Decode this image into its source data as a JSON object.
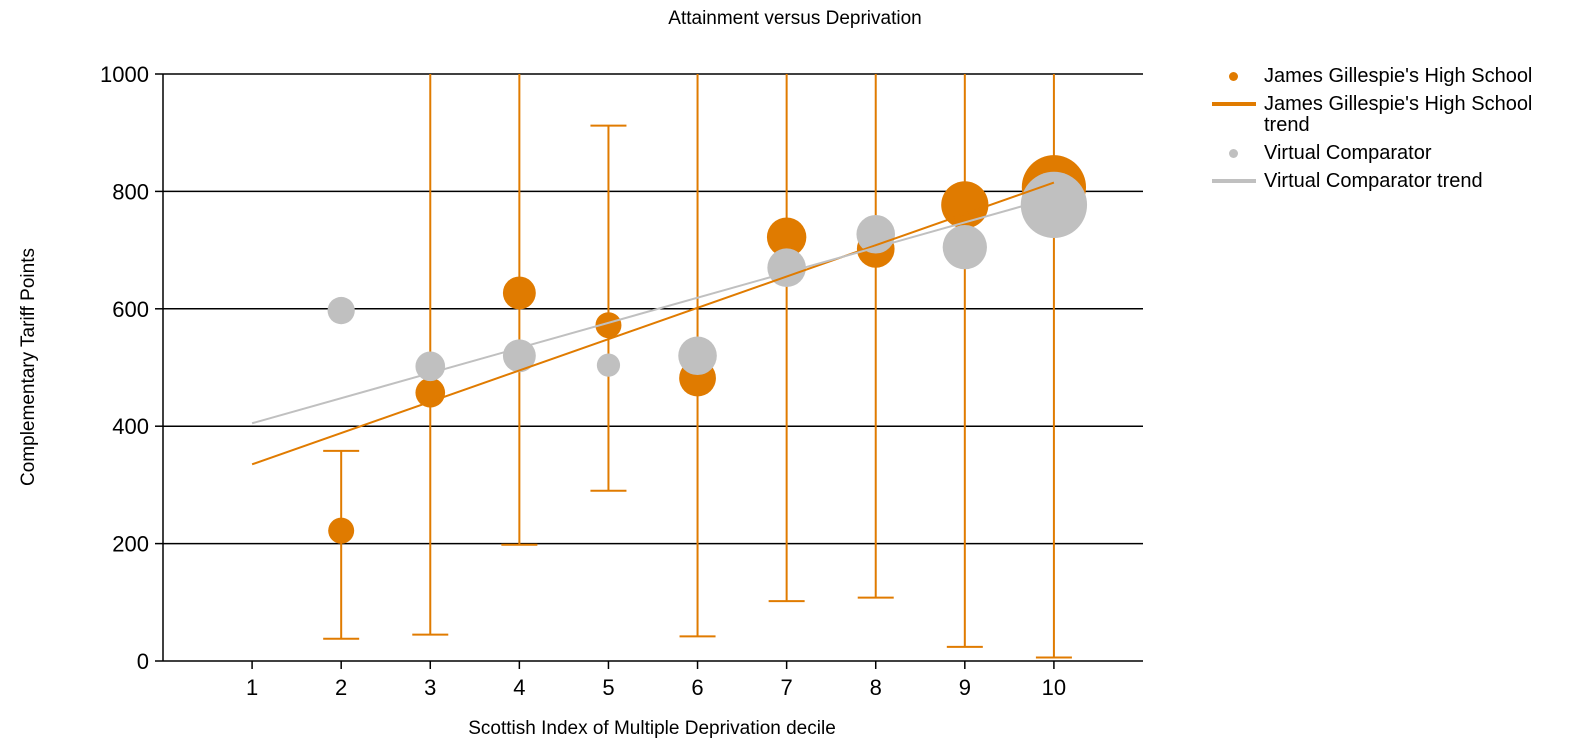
{
  "chart_data": {
    "type": "scatter",
    "title": "Attainment versus Deprivation",
    "xlabel": "Scottish Index of Multiple Deprivation decile",
    "ylabel": "Complementary Tariff Points",
    "xlim": [
      0,
      11
    ],
    "ylim": [
      0,
      1000
    ],
    "xticks": [
      1,
      2,
      3,
      4,
      5,
      6,
      7,
      8,
      9,
      10
    ],
    "yticks": [
      0,
      200,
      400,
      600,
      800,
      1000
    ],
    "grid": "horizontal",
    "legend": "right",
    "colors": {
      "school": "#e07b00",
      "comparator": "#c0c0c0"
    },
    "series": [
      {
        "name": "James Gillespie's High School",
        "points": [
          {
            "x": 2,
            "y": 222,
            "size": 1,
            "low": 38,
            "high": 358
          },
          {
            "x": 3,
            "y": 457,
            "size": 1.3,
            "low": 45,
            "high": 1000
          },
          {
            "x": 4,
            "y": 627,
            "size": 1.6,
            "low": 198,
            "high": 1000
          },
          {
            "x": 5,
            "y": 572,
            "size": 1,
            "low": 290,
            "high": 912
          },
          {
            "x": 6,
            "y": 482,
            "size": 2.0,
            "low": 42,
            "high": 1000
          },
          {
            "x": 7,
            "y": 722,
            "size": 2.3,
            "low": 102,
            "high": 1000
          },
          {
            "x": 8,
            "y": 702,
            "size": 2.1,
            "low": 108,
            "high": 1000
          },
          {
            "x": 9,
            "y": 777,
            "size": 3.3,
            "low": 24,
            "high": 1000
          },
          {
            "x": 10,
            "y": 807,
            "size": 6.1,
            "low": 6,
            "high": 1000
          }
        ]
      },
      {
        "name": "James Gillespie's High School trend",
        "line": [
          {
            "x": 1,
            "y": 335
          },
          {
            "x": 10,
            "y": 815
          }
        ]
      },
      {
        "name": "Virtual Comparator",
        "points": [
          {
            "x": 2,
            "y": 597,
            "size": 1.1
          },
          {
            "x": 3,
            "y": 502,
            "size": 1.3
          },
          {
            "x": 4,
            "y": 520,
            "size": 1.6
          },
          {
            "x": 5,
            "y": 504,
            "size": 0.8
          },
          {
            "x": 6,
            "y": 520,
            "size": 2.2
          },
          {
            "x": 7,
            "y": 670,
            "size": 2.2
          },
          {
            "x": 8,
            "y": 727,
            "size": 2.2
          },
          {
            "x": 9,
            "y": 705,
            "size": 2.9
          },
          {
            "x": 10,
            "y": 777,
            "size": 6.5
          }
        ]
      },
      {
        "name": "Virtual Comparator trend",
        "line": [
          {
            "x": 1,
            "y": 405
          },
          {
            "x": 10,
            "y": 790
          }
        ]
      }
    ]
  },
  "legend": {
    "items": [
      {
        "label": "James Gillespie's High School",
        "kind": "dot",
        "color": "#e07b00"
      },
      {
        "label": "James Gillespie's High School trend",
        "kind": "line",
        "color": "#e07b00"
      },
      {
        "label": "Virtual Comparator",
        "kind": "dot",
        "color": "#c0c0c0"
      },
      {
        "label": "Virtual Comparator trend",
        "kind": "line",
        "color": "#c0c0c0"
      }
    ]
  }
}
